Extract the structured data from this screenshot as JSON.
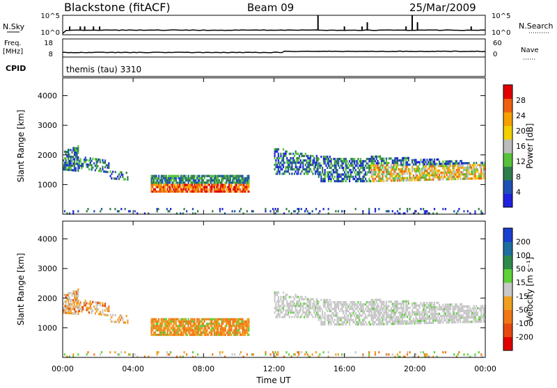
{
  "header": {
    "title": "Blackstone (fitACF)",
    "beam": "Beam 09",
    "date": "25/Mar/2009"
  },
  "top_panels": {
    "nsky_label": "N.Sky",
    "nsearch_label": "N.Search",
    "ticks_left_top": [
      "10^5",
      "10^0"
    ],
    "ticks_right_top": [
      "10^5",
      "10^0"
    ],
    "freq_label": "Freq.",
    "freq_unit": "[MHz]",
    "freq_ticks": [
      "18",
      "8"
    ],
    "nave_label": "Nave",
    "nave_ticks": [
      "60",
      "0"
    ],
    "cpid_label": "CPID",
    "cpid_value": "themis (tau) 3310"
  },
  "colors": {
    "power_scale": [
      "#2020e0",
      "#1e50b4",
      "#2e7d4c",
      "#55c23a",
      "#bcbcbc",
      "#f0d000",
      "#f5a000",
      "#ee6010",
      "#e00000"
    ],
    "velocity_scale": [
      "#1a3fd0",
      "#1e6fa0",
      "#2e8a4a",
      "#5ed03a",
      "#c8c8c8",
      "#f0a020",
      "#f07818",
      "#e84810",
      "#e00000"
    ]
  },
  "chart_data": [
    {
      "type": "heatmap",
      "name": "Power",
      "ylabel": "Slant Range [km]",
      "ylim": [
        0,
        4600
      ],
      "yticks": [
        "1000",
        "2000",
        "3000",
        "4000"
      ],
      "colorbar_label": "Power [dB]",
      "colorbar_ticks": [
        "4",
        "8",
        "12",
        "16",
        "20",
        "24",
        "28"
      ],
      "xlim": [
        "00:00",
        "24:00"
      ]
    },
    {
      "type": "heatmap",
      "name": "Velocity",
      "ylabel": "Slant Range [km]",
      "ylim": [
        0,
        4600
      ],
      "yticks": [
        "1000",
        "2000",
        "3000",
        "4000"
      ],
      "colorbar_label": "Velocity [m s⁻¹]",
      "colorbar_ticks": [
        "200",
        "100",
        "50",
        "15",
        "-15",
        "-50",
        "-100",
        "-200"
      ],
      "xlim": [
        "00:00",
        "24:00"
      ]
    }
  ],
  "xaxis": {
    "ticks": [
      "00:00",
      "04:00",
      "08:00",
      "12:00",
      "16:00",
      "20:00",
      "00:00"
    ],
    "label": "Time UT"
  }
}
